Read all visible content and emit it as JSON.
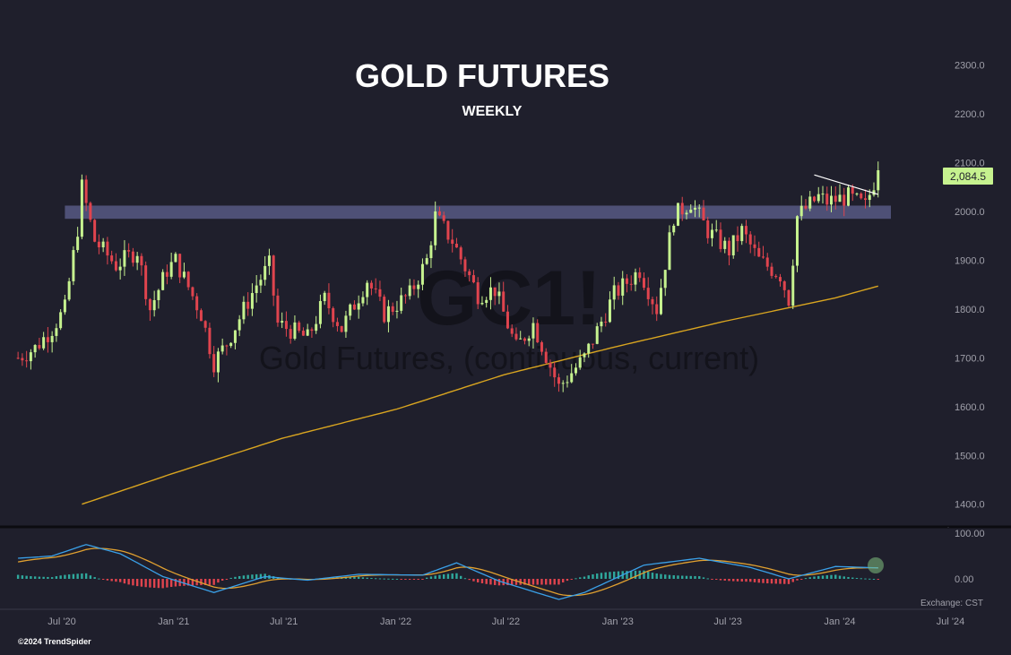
{
  "chart_data": {
    "type": "candlestick",
    "title": "GOLD FUTURES",
    "subtitle": "WEEKLY",
    "watermark_symbol": "GC1!",
    "watermark_name": "Gold Futures, (continuous, current)",
    "copyright": "©2024 TrendSpider",
    "exchange_label": "Exchange: CST",
    "last_price_label": "2,084.5",
    "price_axis": {
      "ylim": [
        1350,
        2330
      ],
      "ticks": [
        {
          "value": 2300,
          "label": "2300.0"
        },
        {
          "value": 2200,
          "label": "2200.0"
        },
        {
          "value": 2100,
          "label": "2100.0"
        },
        {
          "value": 2000,
          "label": "2000.0"
        },
        {
          "value": 1900,
          "label": "1900.0"
        },
        {
          "value": 1800,
          "label": "1800.0"
        },
        {
          "value": 1700,
          "label": "1700.0"
        },
        {
          "value": 1600,
          "label": "1600.0"
        },
        {
          "value": 1500,
          "label": "1500.0"
        },
        {
          "value": 1400,
          "label": "1400.0"
        }
      ]
    },
    "macd_axis": {
      "ticks": [
        {
          "value": 100,
          "label": "100.00"
        },
        {
          "value": 0,
          "label": "0.00"
        }
      ]
    },
    "time_axis": {
      "start": "2020-04-20",
      "end": "2024-08-05",
      "ticks": [
        {
          "date": "2020-07-01",
          "label": "Jul '20"
        },
        {
          "date": "2021-01-01",
          "label": "Jan '21"
        },
        {
          "date": "2021-07-01",
          "label": "Jul '21"
        },
        {
          "date": "2022-01-01",
          "label": "Jan '22"
        },
        {
          "date": "2022-07-01",
          "label": "Jul '22"
        },
        {
          "date": "2023-01-01",
          "label": "Jan '23"
        },
        {
          "date": "2023-07-01",
          "label": "Jul '23"
        },
        {
          "date": "2024-01-01",
          "label": "Jan '24"
        },
        {
          "date": "2024-07-01",
          "label": "Jul '24"
        }
      ]
    },
    "resistance_zone": {
      "low": 1985,
      "high": 2012,
      "start": "2020-07-06",
      "end": "2024-03-25"
    },
    "trendline": [
      {
        "date": "2023-11-20",
        "value": 2075
      },
      {
        "date": "2024-03-04",
        "value": 2035
      }
    ],
    "price_anchors": [
      [
        "2020-04-20",
        1700
      ],
      [
        "2020-05-18",
        1720
      ],
      [
        "2020-06-15",
        1760
      ],
      [
        "2020-07-06",
        1800
      ],
      [
        "2020-07-27",
        1965
      ],
      [
        "2020-08-03",
        2050
      ],
      [
        "2020-08-24",
        1940
      ],
      [
        "2020-09-28",
        1890
      ],
      [
        "2020-11-02",
        1920
      ],
      [
        "2020-11-23",
        1800
      ],
      [
        "2020-12-21",
        1880
      ],
      [
        "2021-01-04",
        1900
      ],
      [
        "2021-02-15",
        1790
      ],
      [
        "2021-03-08",
        1690
      ],
      [
        "2021-03-29",
        1730
      ],
      [
        "2021-05-17",
        1850
      ],
      [
        "2021-06-07",
        1890
      ],
      [
        "2021-06-21",
        1770
      ],
      [
        "2021-08-09",
        1740
      ],
      [
        "2021-09-06",
        1820
      ],
      [
        "2021-10-04",
        1760
      ],
      [
        "2021-11-15",
        1860
      ],
      [
        "2021-12-13",
        1790
      ],
      [
        "2022-01-24",
        1830
      ],
      [
        "2022-02-21",
        1900
      ],
      [
        "2022-03-07",
        1990
      ],
      [
        "2022-04-04",
        1940
      ],
      [
        "2022-05-16",
        1830
      ],
      [
        "2022-06-13",
        1840
      ],
      [
        "2022-07-18",
        1720
      ],
      [
        "2022-08-15",
        1770
      ],
      [
        "2022-09-26",
        1640
      ],
      [
        "2022-11-07",
        1700
      ],
      [
        "2022-12-26",
        1830
      ],
      [
        "2023-02-06",
        1880
      ],
      [
        "2023-03-06",
        1800
      ],
      [
        "2023-04-03",
        1990
      ],
      [
        "2023-05-01",
        2020
      ],
      [
        "2023-05-29",
        1960
      ],
      [
        "2023-07-03",
        1920
      ],
      [
        "2023-07-24",
        1960
      ],
      [
        "2023-08-21",
        1900
      ],
      [
        "2023-09-25",
        1870
      ],
      [
        "2023-10-09",
        1820
      ],
      [
        "2023-10-23",
        1990
      ],
      [
        "2023-11-27",
        2030
      ],
      [
        "2023-12-11",
        2020
      ],
      [
        "2024-01-15",
        2030
      ],
      [
        "2024-02-12",
        2010
      ],
      [
        "2024-03-04",
        2084.5
      ]
    ],
    "series": [
      {
        "type": "moving-average",
        "color": "#d9a520",
        "points": [
          [
            "2020-08-03",
            1400
          ],
          [
            "2020-12-28",
            1462
          ],
          [
            "2021-06-28",
            1535
          ],
          [
            "2022-01-03",
            1595
          ],
          [
            "2022-06-27",
            1665
          ],
          [
            "2022-12-26",
            1722
          ],
          [
            "2023-06-26",
            1775
          ],
          [
            "2023-12-25",
            1823
          ],
          [
            "2024-03-04",
            1847
          ]
        ]
      }
    ],
    "macd_anchors": [
      [
        "2020-04-20",
        45
      ],
      [
        "2020-06-15",
        50
      ],
      [
        "2020-08-10",
        75
      ],
      [
        "2020-10-05",
        55
      ],
      [
        "2020-12-14",
        5
      ],
      [
        "2021-03-08",
        -30
      ],
      [
        "2021-05-31",
        5
      ],
      [
        "2021-08-09",
        -3
      ],
      [
        "2021-11-01",
        10
      ],
      [
        "2022-02-14",
        8
      ],
      [
        "2022-04-11",
        35
      ],
      [
        "2022-06-20",
        -5
      ],
      [
        "2022-09-26",
        -45
      ],
      [
        "2022-11-07",
        -30
      ],
      [
        "2023-02-13",
        30
      ],
      [
        "2023-05-15",
        45
      ],
      [
        "2023-08-07",
        25
      ],
      [
        "2023-10-09",
        0
      ],
      [
        "2023-12-25",
        27
      ],
      [
        "2024-03-04",
        24
      ]
    ],
    "colors": {
      "background": "#1f1f2c",
      "up": "#c6f28f",
      "down": "#e0444e",
      "ma": "#d9a520",
      "macd": "#3aa0e8",
      "signal": "#e0a030",
      "hist_pos": "#2fa89c",
      "hist_neg": "#e0444e",
      "zone": "#5f618f",
      "price_label_bg": "#c6f28f"
    }
  }
}
